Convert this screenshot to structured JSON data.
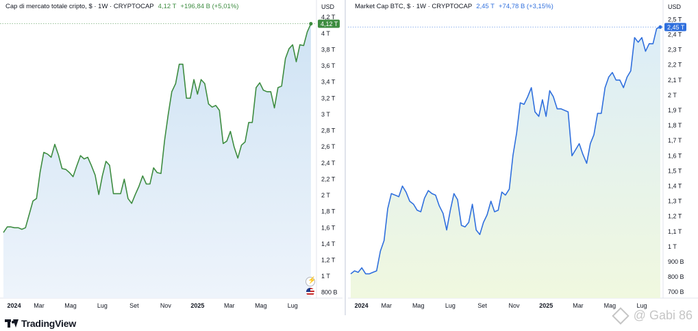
{
  "chart_data": [
    {
      "type": "area",
      "legend": {
        "title": "Cap di mercato totale cripto, $ · 1W · CRYPTOCAP",
        "last": "4,12 T",
        "change": "+196,84 B (+5,01%)"
      },
      "currency_label": "USD",
      "last_value_label": "4,12 T",
      "color": "#3d8c40",
      "fill_top": "#cfe3f4",
      "fill_bottom": "#eef4fb",
      "label_bg": "#3d8c40",
      "ylim": [
        0.73,
        4.21
      ],
      "y_ticks": [
        {
          "v": 4.2,
          "label": "4,2 T"
        },
        {
          "v": 4.0,
          "label": "4 T"
        },
        {
          "v": 3.8,
          "label": "3,8 T"
        },
        {
          "v": 3.6,
          "label": "3,6 T"
        },
        {
          "v": 3.4,
          "label": "3,4 T"
        },
        {
          "v": 3.2,
          "label": "3,2 T"
        },
        {
          "v": 3.0,
          "label": "3 T"
        },
        {
          "v": 2.8,
          "label": "2,8 T"
        },
        {
          "v": 2.6,
          "label": "2,6 T"
        },
        {
          "v": 2.4,
          "label": "2,4 T"
        },
        {
          "v": 2.2,
          "label": "2,2 T"
        },
        {
          "v": 2.0,
          "label": "2 T"
        },
        {
          "v": 1.8,
          "label": "1,8 T"
        },
        {
          "v": 1.6,
          "label": "1,6 T"
        },
        {
          "v": 1.4,
          "label": "1,4 T"
        },
        {
          "v": 1.2,
          "label": "1,2 T"
        },
        {
          "v": 1.0,
          "label": "1 T"
        },
        {
          "v": 0.8,
          "label": "800 B"
        }
      ],
      "x_ticks": [
        {
          "x": 2024.0,
          "label": "2024",
          "bold": true
        },
        {
          "x": 2024.167,
          "label": "Mar"
        },
        {
          "x": 2024.333,
          "label": "Mag"
        },
        {
          "x": 2024.5,
          "label": "Lug"
        },
        {
          "x": 2024.667,
          "label": "Set"
        },
        {
          "x": 2024.833,
          "label": "Nov"
        },
        {
          "x": 2025.0,
          "label": "2025",
          "bold": true
        },
        {
          "x": 2025.167,
          "label": "Mar"
        },
        {
          "x": 2025.333,
          "label": "Mag"
        },
        {
          "x": 2025.5,
          "label": "Lug"
        }
      ],
      "xlim": [
        2023.98,
        2025.6
      ],
      "x": [
        2023.98,
        2024.0,
        2024.019,
        2024.038,
        2024.058,
        2024.077,
        2024.096,
        2024.115,
        2024.135,
        2024.154,
        2024.173,
        2024.192,
        2024.212,
        2024.231,
        2024.25,
        2024.269,
        2024.288,
        2024.308,
        2024.327,
        2024.346,
        2024.365,
        2024.385,
        2024.404,
        2024.423,
        2024.442,
        2024.462,
        2024.481,
        2024.5,
        2024.519,
        2024.538,
        2024.558,
        2024.577,
        2024.596,
        2024.615,
        2024.635,
        2024.654,
        2024.673,
        2024.692,
        2024.712,
        2024.731,
        2024.75,
        2024.769,
        2024.788,
        2024.808,
        2024.827,
        2024.846,
        2024.865,
        2024.885,
        2024.904,
        2024.923,
        2024.942,
        2024.962,
        2024.981,
        2025.0,
        2025.019,
        2025.038,
        2025.058,
        2025.077,
        2025.096,
        2025.115,
        2025.135,
        2025.154,
        2025.173,
        2025.192,
        2025.212,
        2025.231,
        2025.25,
        2025.269,
        2025.288,
        2025.308,
        2025.327,
        2025.346,
        2025.365,
        2025.385,
        2025.404,
        2025.423,
        2025.442,
        2025.462,
        2025.481,
        2025.5,
        2025.519,
        2025.538,
        2025.558,
        2025.577,
        2025.596
      ],
      "values": [
        1.54,
        1.61,
        1.61,
        1.6,
        1.6,
        1.58,
        1.6,
        1.76,
        1.93,
        1.96,
        2.29,
        2.53,
        2.51,
        2.47,
        2.63,
        2.5,
        2.33,
        2.32,
        2.28,
        2.23,
        2.36,
        2.49,
        2.45,
        2.47,
        2.37,
        2.25,
        2.01,
        2.24,
        2.42,
        2.37,
        2.02,
        2.02,
        2.02,
        2.2,
        1.96,
        1.9,
        2.01,
        2.11,
        2.24,
        2.14,
        2.14,
        2.34,
        2.28,
        2.27,
        2.68,
        3.0,
        3.28,
        3.38,
        3.62,
        3.62,
        3.2,
        3.2,
        3.43,
        3.25,
        3.43,
        3.38,
        3.13,
        3.09,
        3.11,
        3.05,
        2.64,
        2.67,
        2.79,
        2.6,
        2.46,
        2.62,
        2.66,
        2.9,
        2.9,
        3.33,
        3.39,
        3.3,
        3.28,
        3.28,
        3.08,
        3.33,
        3.35,
        3.69,
        3.81,
        3.86,
        3.65,
        3.86,
        3.85,
        4.02,
        4.12
      ]
    },
    {
      "type": "area",
      "legend": {
        "title": "Market Cap BTC, $ · 1W · CRYPTOCAP",
        "last": "2,45 T",
        "change": "+74,78 B (+3,15%)"
      },
      "currency_label": "USD",
      "last_value_label": "2,45 T",
      "color": "#2f6fdd",
      "fill_top": "#dcedf8",
      "fill_bottom": "#f0f8df",
      "label_bg": "#2f6fdd",
      "ylim": [
        0.66,
        2.52
      ],
      "y_ticks": [
        {
          "v": 2.5,
          "label": "2,5 T"
        },
        {
          "v": 2.4,
          "label": "2,4 T"
        },
        {
          "v": 2.3,
          "label": "2,3 T"
        },
        {
          "v": 2.2,
          "label": "2,2 T"
        },
        {
          "v": 2.1,
          "label": "2,1 T"
        },
        {
          "v": 2.0,
          "label": "2 T"
        },
        {
          "v": 1.9,
          "label": "1,9 T"
        },
        {
          "v": 1.8,
          "label": "1,8 T"
        },
        {
          "v": 1.7,
          "label": "1,7 T"
        },
        {
          "v": 1.6,
          "label": "1,6 T"
        },
        {
          "v": 1.5,
          "label": "1,5 T"
        },
        {
          "v": 1.4,
          "label": "1,4 T"
        },
        {
          "v": 1.3,
          "label": "1,3 T"
        },
        {
          "v": 1.2,
          "label": "1,2 T"
        },
        {
          "v": 1.1,
          "label": "1,1 T"
        },
        {
          "v": 1.0,
          "label": "1 T"
        },
        {
          "v": 0.9,
          "label": "900 B"
        },
        {
          "v": 0.8,
          "label": "800 B"
        },
        {
          "v": 0.7,
          "label": "700 B"
        }
      ],
      "x_ticks": [
        {
          "x": 2024.0,
          "label": "2024",
          "bold": true
        },
        {
          "x": 2024.167,
          "label": "Mar"
        },
        {
          "x": 2024.333,
          "label": "Mag"
        },
        {
          "x": 2024.5,
          "label": "Lug"
        },
        {
          "x": 2024.667,
          "label": "Set"
        },
        {
          "x": 2024.833,
          "label": "Nov"
        },
        {
          "x": 2025.0,
          "label": "2025",
          "bold": true
        },
        {
          "x": 2025.167,
          "label": "Mar"
        },
        {
          "x": 2025.333,
          "label": "Mag"
        },
        {
          "x": 2025.5,
          "label": "Lug"
        }
      ],
      "xlim": [
        2023.98,
        2025.6
      ],
      "x": [
        2023.98,
        2024.0,
        2024.019,
        2024.038,
        2024.058,
        2024.077,
        2024.096,
        2024.115,
        2024.135,
        2024.154,
        2024.173,
        2024.192,
        2024.212,
        2024.231,
        2024.25,
        2024.269,
        2024.288,
        2024.308,
        2024.327,
        2024.346,
        2024.365,
        2024.385,
        2024.404,
        2024.423,
        2024.442,
        2024.462,
        2024.481,
        2024.5,
        2024.519,
        2024.538,
        2024.558,
        2024.577,
        2024.596,
        2024.615,
        2024.635,
        2024.654,
        2024.673,
        2024.692,
        2024.712,
        2024.731,
        2024.75,
        2024.769,
        2024.788,
        2024.808,
        2024.827,
        2024.846,
        2024.865,
        2024.885,
        2024.904,
        2024.923,
        2024.942,
        2024.962,
        2024.981,
        2025.0,
        2025.019,
        2025.038,
        2025.058,
        2025.077,
        2025.096,
        2025.115,
        2025.135,
        2025.154,
        2025.173,
        2025.192,
        2025.212,
        2025.231,
        2025.25,
        2025.269,
        2025.288,
        2025.308,
        2025.327,
        2025.346,
        2025.365,
        2025.385,
        2025.404,
        2025.423,
        2025.442,
        2025.462,
        2025.481,
        2025.5,
        2025.519,
        2025.538,
        2025.558,
        2025.577,
        2025.596
      ],
      "values": [
        0.82,
        0.84,
        0.83,
        0.86,
        0.82,
        0.82,
        0.83,
        0.84,
        0.97,
        1.04,
        1.25,
        1.35,
        1.34,
        1.33,
        1.4,
        1.36,
        1.3,
        1.28,
        1.24,
        1.23,
        1.32,
        1.37,
        1.35,
        1.34,
        1.27,
        1.22,
        1.11,
        1.24,
        1.35,
        1.31,
        1.14,
        1.13,
        1.16,
        1.28,
        1.11,
        1.08,
        1.16,
        1.21,
        1.3,
        1.23,
        1.24,
        1.36,
        1.34,
        1.38,
        1.6,
        1.75,
        1.95,
        1.94,
        1.99,
        2.05,
        1.89,
        1.86,
        1.97,
        1.86,
        2.03,
        1.99,
        1.91,
        1.91,
        1.9,
        1.89,
        1.6,
        1.64,
        1.68,
        1.61,
        1.55,
        1.68,
        1.74,
        1.88,
        1.88,
        2.05,
        2.12,
        2.15,
        2.1,
        2.1,
        2.05,
        2.12,
        2.16,
        2.38,
        2.35,
        2.38,
        2.29,
        2.34,
        2.34,
        2.44,
        2.45
      ]
    }
  ],
  "branding": {
    "name": "TradingView",
    "logo_icon": "tradingview-logo-icon"
  },
  "watermark": {
    "text": "@ Gabi 86",
    "icon": "binance-diamond-icon"
  },
  "icons": {
    "lightning": "lightning-icon",
    "flag": "us-flag-icon"
  }
}
